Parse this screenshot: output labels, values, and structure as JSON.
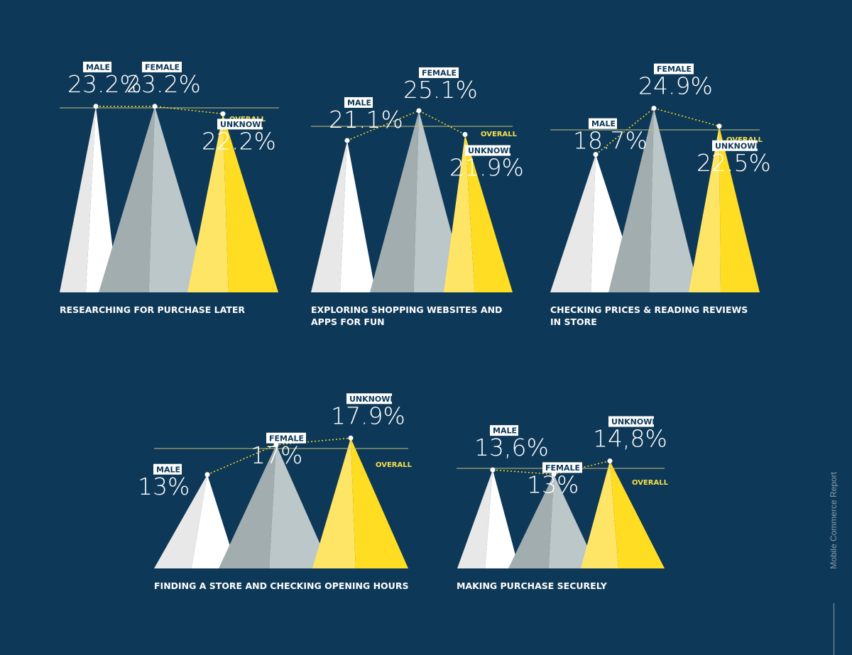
{
  "side_label": "Mobile Commerce Report",
  "overall_label": "OVERALL",
  "colors": {
    "background": "#0e3857",
    "male": "#ffffff",
    "male_shade": "#e8e8e8",
    "female": "#bcc7c9",
    "female_shade": "#a2adb0",
    "unknown": "#ffdd22",
    "unknown_shade": "#ffe566",
    "overall_line": "#c7c27a",
    "overall_text": "#f5e04a"
  },
  "chart_data": [
    {
      "type": "triangle-area",
      "title": [
        "RESEARCHING FOR PURCHASE LATER"
      ],
      "overall": 23.0,
      "series": [
        {
          "name": "MALE",
          "value": 23.2,
          "label": "23.2%"
        },
        {
          "name": "FEMALE",
          "value": 23.2,
          "label": "23.2%"
        },
        {
          "name": "UNKNOWN",
          "value": 22.2,
          "label": "22.2%"
        }
      ]
    },
    {
      "type": "triangle-area",
      "title": [
        "EXPLORING SHOPPING WEBSITES AND",
        "APPS FOR FUN"
      ],
      "overall": 23.0,
      "series": [
        {
          "name": "MALE",
          "value": 21.1,
          "label": "21.1%"
        },
        {
          "name": "FEMALE",
          "value": 25.1,
          "label": "25.1%"
        },
        {
          "name": "UNKNOWN",
          "value": 21.9,
          "label": "21.9%"
        }
      ]
    },
    {
      "type": "triangle-area",
      "title": [
        "CHECKING PRICES & READING REVIEWS",
        "IN STORE"
      ],
      "overall": 22.0,
      "series": [
        {
          "name": "MALE",
          "value": 18.7,
          "label": "18.7%"
        },
        {
          "name": "FEMALE",
          "value": 24.9,
          "label": "24.9%"
        },
        {
          "name": "UNKNOWN",
          "value": 22.5,
          "label": "22.5%"
        }
      ]
    },
    {
      "type": "triangle-area",
      "title": [
        "FINDING A STORE AND CHECKING OPENING HOURS"
      ],
      "overall": 16.5,
      "series": [
        {
          "name": "MALE",
          "value": 13,
          "label": "13%"
        },
        {
          "name": "FEMALE",
          "value": 17,
          "label": "17%"
        },
        {
          "name": "UNKNOWN",
          "value": 17.9,
          "label": "17.9%"
        }
      ]
    },
    {
      "type": "triangle-area",
      "title": [
        "MAKING PURCHASE SECURELY"
      ],
      "overall": 13.8,
      "series": [
        {
          "name": "MALE",
          "value": 13.6,
          "label": "13,6%"
        },
        {
          "name": "FEMALE",
          "value": 13,
          "label": "13%"
        },
        {
          "name": "UNKNOWN",
          "value": 14.8,
          "label": "14,8%"
        }
      ]
    }
  ]
}
